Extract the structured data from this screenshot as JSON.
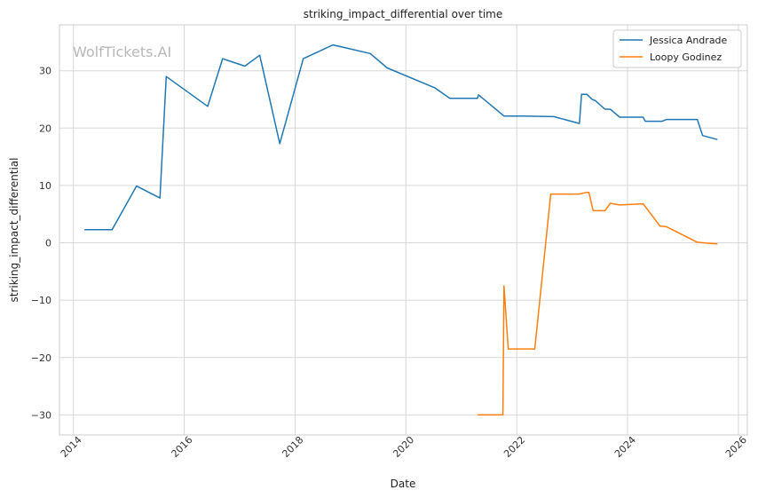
{
  "chart_data": {
    "type": "line",
    "title": "striking_impact_differential over time",
    "xlabel": "Date",
    "ylabel": "striking_impact_differential",
    "watermark": "WolfTickets.AI",
    "xlim": [
      "2013-10-01",
      "2026-03-01"
    ],
    "ylim": [
      -33.5,
      38
    ],
    "x_ticks": [
      "2014-01-01",
      "2016-01-01",
      "2018-01-01",
      "2020-01-01",
      "2022-01-01",
      "2024-01-01",
      "2026-01-01"
    ],
    "x_tick_labels": [
      "2014",
      "2016",
      "2018",
      "2020",
      "2022",
      "2024",
      "2026"
    ],
    "y_ticks": [
      -30,
      -20,
      -10,
      0,
      10,
      20,
      30
    ],
    "y_tick_labels": [
      "−30",
      "−20",
      "−10",
      "0",
      "10",
      "20",
      "30"
    ],
    "grid": true,
    "legend_position": "top-right",
    "series": [
      {
        "name": "Jessica Andrade",
        "color": "#1f77b4",
        "points": [
          [
            "2014-03-15",
            2.3
          ],
          [
            "2014-09-13",
            2.3
          ],
          [
            "2015-02-21",
            9.9
          ],
          [
            "2015-07-25",
            7.8
          ],
          [
            "2015-09-05",
            29.0
          ],
          [
            "2016-06-04",
            23.8
          ],
          [
            "2016-09-10",
            32.1
          ],
          [
            "2017-02-04",
            30.8
          ],
          [
            "2017-05-13",
            32.7
          ],
          [
            "2017-09-22",
            17.3
          ],
          [
            "2018-02-24",
            32.1
          ],
          [
            "2018-09-08",
            34.5
          ],
          [
            "2019-05-11",
            33.0
          ],
          [
            "2019-08-31",
            30.5
          ],
          [
            "2020-07-12",
            27.0
          ],
          [
            "2020-10-17",
            25.2
          ],
          [
            "2021-04-17",
            25.2
          ],
          [
            "2021-04-24",
            25.8
          ],
          [
            "2021-10-09",
            22.1
          ],
          [
            "2022-02-19",
            22.1
          ],
          [
            "2022-09-03",
            22.0
          ],
          [
            "2023-02-18",
            20.8
          ],
          [
            "2023-03-04",
            25.9
          ],
          [
            "2023-04-08",
            25.9
          ],
          [
            "2023-05-13",
            25.0
          ],
          [
            "2023-06-03",
            24.8
          ],
          [
            "2023-08-05",
            23.3
          ],
          [
            "2023-09-09",
            23.3
          ],
          [
            "2023-11-11",
            21.9
          ],
          [
            "2024-04-13",
            21.9
          ],
          [
            "2024-04-27",
            21.2
          ],
          [
            "2024-08-17",
            21.2
          ],
          [
            "2024-09-14",
            21.5
          ],
          [
            "2025-04-05",
            21.5
          ],
          [
            "2025-05-10",
            18.7
          ],
          [
            "2025-08-16",
            18.0
          ]
        ]
      },
      {
        "name": "Loopy Godinez",
        "color": "#ff7f0e",
        "points": [
          [
            "2021-04-17",
            -30.0
          ],
          [
            "2021-10-02",
            -30.0
          ],
          [
            "2021-10-09",
            -7.5
          ],
          [
            "2021-11-06",
            -18.5
          ],
          [
            "2022-04-30",
            -18.5
          ],
          [
            "2022-08-13",
            8.5
          ],
          [
            "2023-02-18",
            8.5
          ],
          [
            "2023-04-08",
            8.8
          ],
          [
            "2023-04-22",
            8.8
          ],
          [
            "2023-05-20",
            5.6
          ],
          [
            "2023-08-05",
            5.6
          ],
          [
            "2023-09-09",
            6.9
          ],
          [
            "2023-11-11",
            6.6
          ],
          [
            "2024-04-13",
            6.8
          ],
          [
            "2024-08-03",
            2.9
          ],
          [
            "2024-09-14",
            2.8
          ],
          [
            "2025-04-05",
            0.1
          ],
          [
            "2025-05-10",
            0.0
          ],
          [
            "2025-08-16",
            -0.2
          ]
        ]
      }
    ]
  }
}
